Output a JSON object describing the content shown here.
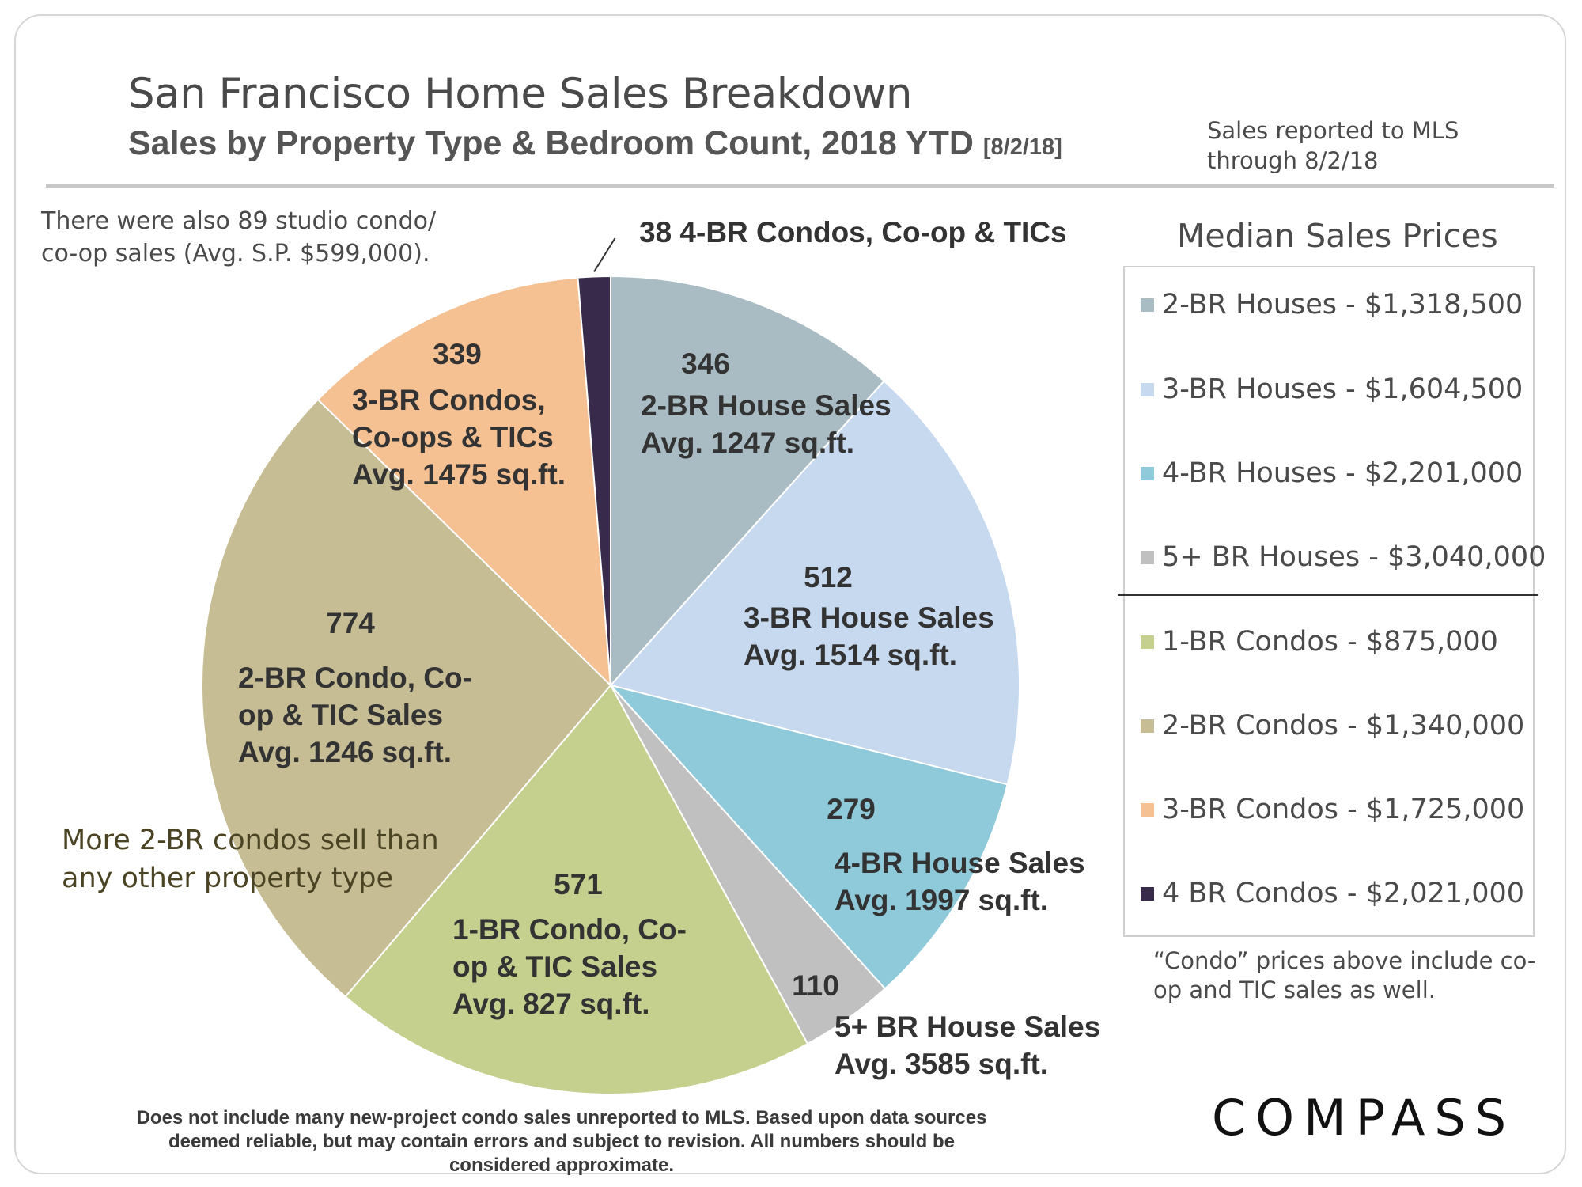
{
  "header": {
    "title": "San Francisco Home Sales Breakdown",
    "subtitle": "Sales by Property Type & Bedroom Count, 2018 YTD",
    "subtitle_date": "[8/2/18]",
    "note": "Sales reported to MLS\nthrough 8/2/18"
  },
  "notes": {
    "studio": "There were also 89 studio condo/\nco-op sales (Avg. S.P. $599,000).",
    "condos_most": "More 2-BR condos sell than\nany other property type"
  },
  "chart_data": {
    "type": "pie",
    "title": "",
    "start": "12 o'clock, clockwise",
    "slices": [
      {
        "count": "346",
        "lines": [
          "2-BR House Sales",
          "Avg. 1247 sq.ft."
        ],
        "value": 346,
        "color": "#a9bcc4"
      },
      {
        "count": "512",
        "lines": [
          "3-BR House Sales",
          "Avg. 1514 sq.ft."
        ],
        "value": 512,
        "color": "#c6d9ef"
      },
      {
        "count": "279",
        "lines": [
          "4-BR House Sales",
          "Avg. 1997 sq.ft."
        ],
        "value": 279,
        "color": "#8fcadb"
      },
      {
        "count": "110",
        "lines": [
          "5+ BR House Sales",
          "Avg. 3585 sq.ft."
        ],
        "value": 110,
        "color": "#c0c0c0"
      },
      {
        "count": "571",
        "lines": [
          "1-BR Condo, Co-",
          "op & TIC Sales",
          "Avg. 827 sq.ft."
        ],
        "value": 571,
        "color": "#c5d08e"
      },
      {
        "count": "774",
        "lines": [
          "2-BR Condo, Co-",
          "op & TIC Sales",
          "Avg. 1246 sq.ft."
        ],
        "value": 774,
        "color": "#c6bd95"
      },
      {
        "count": "339",
        "lines": [
          "3-BR Condos,",
          "Co-ops & TICs",
          "Avg. 1475 sq.ft."
        ],
        "value": 339,
        "color": "#f6c192"
      },
      {
        "count": "",
        "lines": [
          "38 4-BR Condos, Co-op & TICs"
        ],
        "value": 38,
        "color": "#372a4a"
      }
    ]
  },
  "legend": {
    "title": "Median Sales Prices",
    "items": [
      {
        "label": "2-BR Houses - $1,318,500",
        "color": "#a9bcc4"
      },
      {
        "label": "3-BR Houses - $1,604,500",
        "color": "#c6d9ef"
      },
      {
        "label": "4-BR Houses - $2,201,000",
        "color": "#8fcadb"
      },
      {
        "label": "5+ BR Houses - $3,040,000",
        "color": "#c0c0c0"
      },
      {
        "label": "1-BR Condos - $875,000",
        "color": "#c5d08e"
      },
      {
        "label": "2-BR Condos - $1,340,000",
        "color": "#c6bd95"
      },
      {
        "label": "3-BR Condos - $1,725,000",
        "color": "#f6c192"
      },
      {
        "label": "4 BR Condos - $2,021,000",
        "color": "#372a4a"
      }
    ],
    "note": "“Condo” prices above include co-\nop and TIC sales as well."
  },
  "footnote": "Does not include many new-project condo sales unreported to MLS.  Based upon data sources\ndeemed reliable, but may contain errors and subject to revision. All numbers should be\nconsidered approximate.",
  "logo": "COMPASS"
}
